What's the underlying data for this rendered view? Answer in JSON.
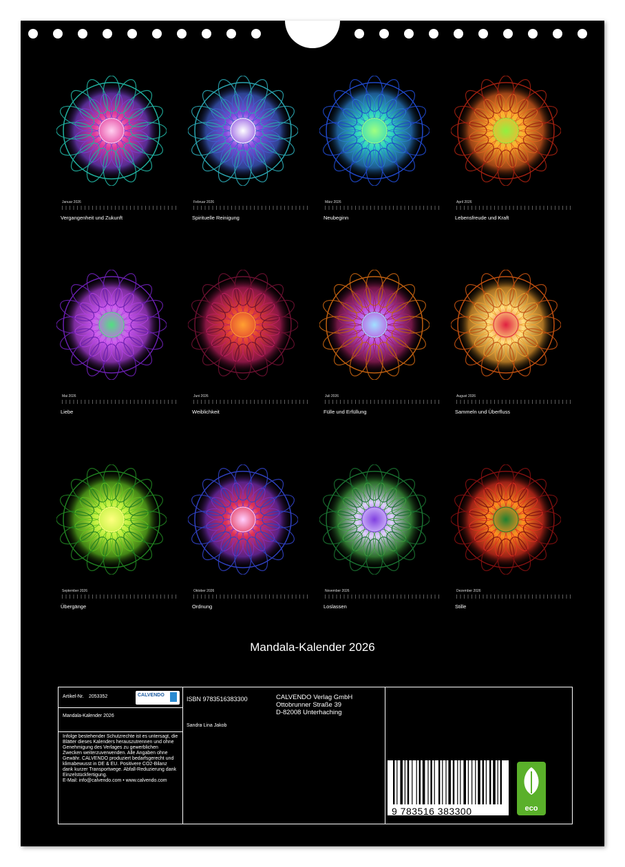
{
  "months": [
    {
      "month": "Januar 2026",
      "caption": "Vergangenheit und Zukunft",
      "colors": [
        "#20b0a0",
        "#7b3fd0",
        "#e23a9a",
        "#ffd0f0"
      ]
    },
    {
      "month": "Februar 2026",
      "caption": "Spirituelle Reinigung",
      "colors": [
        "#2aa4b0",
        "#4060d0",
        "#8a4ae0",
        "#ffffff"
      ]
    },
    {
      "month": "März 2026",
      "caption": "Neubeginn",
      "colors": [
        "#1f48c8",
        "#2a80d0",
        "#30d8c0",
        "#a0ff80"
      ]
    },
    {
      "month": "April 2026",
      "caption": "Lebensfreude und Kraft",
      "colors": [
        "#a02010",
        "#e06020",
        "#ffb030",
        "#90f040"
      ]
    },
    {
      "month": "Mai 2026",
      "caption": "Liebe",
      "colors": [
        "#6a1fb0",
        "#b040e0",
        "#d060f0",
        "#50e080"
      ]
    },
    {
      "month": "Juni 2026",
      "caption": "Weiblichkeit",
      "colors": [
        "#6a1030",
        "#c02060",
        "#e04030",
        "#ffa030"
      ]
    },
    {
      "month": "Juli 2026",
      "caption": "Fülle und Erfüllung",
      "colors": [
        "#c06010",
        "#a02060",
        "#c050e0",
        "#a0e0ff"
      ]
    },
    {
      "month": "August 2026",
      "caption": "Sammeln und Überfluss",
      "colors": [
        "#c05010",
        "#f0a030",
        "#ffe080",
        "#e02040"
      ]
    },
    {
      "month": "September 2026",
      "caption": "Übergänge",
      "colors": [
        "#208020",
        "#60c020",
        "#c0f040",
        "#ffff80"
      ]
    },
    {
      "month": "Oktober 2026",
      "caption": "Ordnung",
      "colors": [
        "#3040c0",
        "#8030c0",
        "#e03050",
        "#ffd0ff"
      ]
    },
    {
      "month": "November 2026",
      "caption": "Loslassen",
      "colors": [
        "#1a7030",
        "#40a040",
        "#e0d0ff",
        "#8040e0"
      ]
    },
    {
      "month": "Dezember 2026",
      "caption": "Stille",
      "colors": [
        "#801010",
        "#e03020",
        "#ff9020",
        "#208030"
      ]
    }
  ],
  "title": "Mandala-Kalender 2026",
  "info": {
    "article_label": "Artikel-Nr.",
    "article_no": "2053352",
    "logo_text": "CALVENDO",
    "product_title": "Mandala-Kalender 2026",
    "isbn": "ISBN 9783516383300",
    "publisher_line1": "CALVENDO Verlag GmbH",
    "publisher_line2": "Ottobrunner Straße 39",
    "publisher_line3": "D-82008 Unterhaching",
    "author": "Sandra Lina Jakob",
    "legal": "Infolge bestehender Schutzrechte ist es untersagt, die Blätter dieses Kalenders herauszutrennen und ohne Genehmigung des Verlages zu gewerblichen Zwecken weiterzuverwenden. Alle Angaben ohne Gewähr. CALVENDO produziert bedarfsgerecht und klimabewusst in DE & EU. Positivere CO2-Bilanz dank kurzer Transportwege. Abfall-Reduzierung dank Einzelstückfertigung.",
    "contact": "E-Mail: info@calvendo.com • www.calvendo.com",
    "barcode_text": "9  783516  383300",
    "eco_label": "eco"
  }
}
